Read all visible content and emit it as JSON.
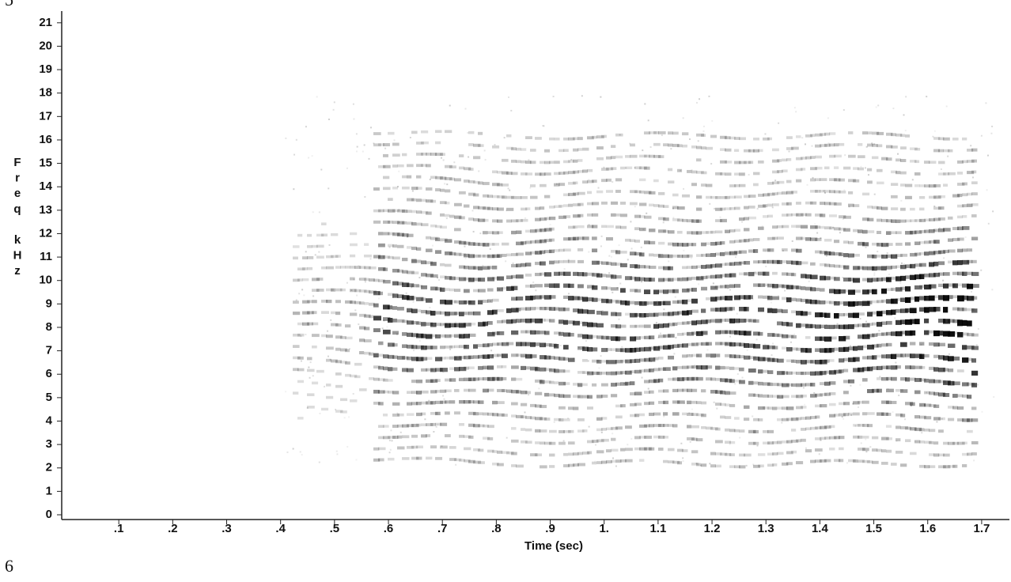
{
  "chart_data": {
    "type": "spectrogram",
    "xlabel": "Time (sec)",
    "ylabel": "Freq kHz",
    "page_markers": [
      "5",
      "6"
    ],
    "xlim": [
      0,
      1.75
    ],
    "ylim": [
      0,
      21.5
    ],
    "xticks": [
      {
        "value": 0.1,
        "label": ".1"
      },
      {
        "value": 0.2,
        "label": ".2"
      },
      {
        "value": 0.3,
        "label": ".3"
      },
      {
        "value": 0.4,
        "label": ".4"
      },
      {
        "value": 0.5,
        "label": ".5"
      },
      {
        "value": 0.6,
        "label": ".6"
      },
      {
        "value": 0.7,
        "label": ".7"
      },
      {
        "value": 0.8,
        "label": ".8"
      },
      {
        "value": 0.9,
        "label": ".9"
      },
      {
        "value": 1,
        "label": "1."
      },
      1.1,
      1.2,
      1.3,
      1.4,
      1.5,
      1.6,
      1.7
    ],
    "yticks": [
      0,
      1,
      2,
      3,
      4,
      5,
      6,
      7,
      8,
      9,
      10,
      11,
      12,
      13,
      14,
      15,
      16,
      17,
      18,
      19,
      20,
      21
    ]
  }
}
